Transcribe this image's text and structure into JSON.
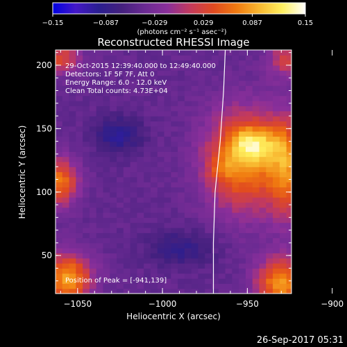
{
  "chart_data": {
    "type": "heatmap",
    "title": "Reconstructed RHESSI Image",
    "xlabel": "Heliocentric X (arcsec)",
    "ylabel": "Heliocentric Y (arcsec)",
    "xlim": [
      -1063,
      -924
    ],
    "ylim": [
      20,
      212
    ],
    "xticks": [
      {
        "value": -1050,
        "label": "−1050"
      },
      {
        "value": -1000,
        "label": "−1000"
      },
      {
        "value": -950,
        "label": "−950"
      },
      {
        "value": -900,
        "label": "−900"
      }
    ],
    "yticks": [
      {
        "value": 50,
        "label": "50"
      },
      {
        "value": 100,
        "label": "100"
      },
      {
        "value": 150,
        "label": "150"
      },
      {
        "value": 200,
        "label": "200"
      }
    ],
    "colorbar": {
      "min": -0.15,
      "max": 0.15,
      "unit_label": "(photons cm⁻² s⁻¹ asec⁻²)",
      "ticks": [
        {
          "value": -0.15,
          "label": "−0.15"
        },
        {
          "value": -0.087,
          "label": "−0.087"
        },
        {
          "value": -0.029,
          "label": "−0.029"
        },
        {
          "value": 0.029,
          "label": "0.029"
        },
        {
          "value": 0.087,
          "label": "0.087"
        },
        {
          "value": 0.15,
          "label": "0.15"
        }
      ],
      "colors": [
        "#0000e0",
        "#4418c8",
        "#2a1e90",
        "#44207e",
        "#6a2a92",
        "#8a2f9a",
        "#c43a5c",
        "#e04a20",
        "#f07a10",
        "#f8b830",
        "#fff060",
        "#ffffff"
      ]
    },
    "info_lines": [
      "29-Oct-2015 12:39:40.000 to 12:49:40.000",
      "Detectors: 1F 5F 7F, Att 0",
      "Energy Range: 6.0 - 12.0 keV",
      "Clean     Total counts: 4.73E+04"
    ],
    "peak_label": "Position of Peak = [-941,139]",
    "peak": {
      "x": -941,
      "y": 139,
      "value": 0.15
    },
    "limb_line": [
      {
        "x": -963,
        "y": 212
      },
      {
        "x": -964,
        "y": 180
      },
      {
        "x": -966,
        "y": 140
      },
      {
        "x": -969,
        "y": 100
      },
      {
        "x": -970,
        "y": 60
      },
      {
        "x": -970,
        "y": 20
      }
    ],
    "sources": [
      {
        "x": -946,
        "y": 138,
        "sx": 10,
        "sy": 10,
        "amp": 0.08
      },
      {
        "x": -952,
        "y": 125,
        "sx": 16,
        "sy": 28,
        "amp": 0.12
      },
      {
        "x": -965,
        "y": 120,
        "sx": 6,
        "sy": 8,
        "amp": 0.03
      },
      {
        "x": -1056,
        "y": 32,
        "sx": 10,
        "sy": 14,
        "amp": 0.13
      },
      {
        "x": -930,
        "y": 28,
        "sx": 10,
        "sy": 14,
        "amp": 0.13
      },
      {
        "x": -1060,
        "y": 108,
        "sx": 7,
        "sy": 13,
        "amp": 0.11
      },
      {
        "x": -926,
        "y": 120,
        "sx": 8,
        "sy": 28,
        "amp": 0.1
      },
      {
        "x": -1060,
        "y": 205,
        "sx": 8,
        "sy": 8,
        "amp": 0.08
      },
      {
        "x": -926,
        "y": 205,
        "sx": 8,
        "sy": 10,
        "amp": 0.07
      },
      {
        "x": -990,
        "y": 56,
        "sx": 14,
        "sy": 10,
        "amp": -0.04
      },
      {
        "x": -1026,
        "y": 145,
        "sx": 10,
        "sy": 10,
        "amp": -0.05
      }
    ],
    "background": -0.045,
    "timestamp": "26-Sep-2017 05:31"
  }
}
